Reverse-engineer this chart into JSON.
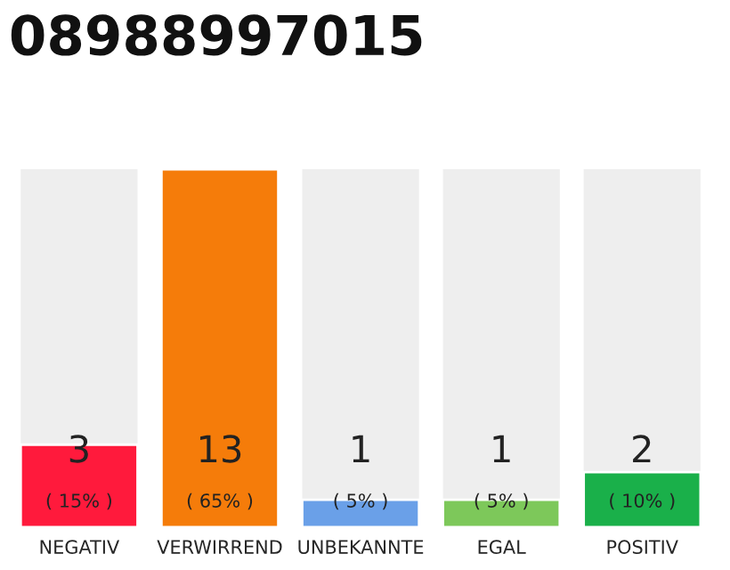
{
  "chart_data": {
    "type": "bar",
    "title": "08988997015",
    "categories": [
      "NEGATIV",
      "VERWIRREND",
      "UNBEKANNTE",
      "EGAL",
      "POSITIV"
    ],
    "values": [
      3,
      13,
      1,
      1,
      2
    ],
    "colors": [
      "#ff1a3c",
      "#f57c0a",
      "#6aa0e8",
      "#7dc85a",
      "#1ab04a"
    ],
    "value_labels": [
      "3\n( 15% )",
      "13\n( 65% )",
      "1\n( 5% )",
      "1\n( 5% )",
      "2\n( 10% )"
    ]
  }
}
